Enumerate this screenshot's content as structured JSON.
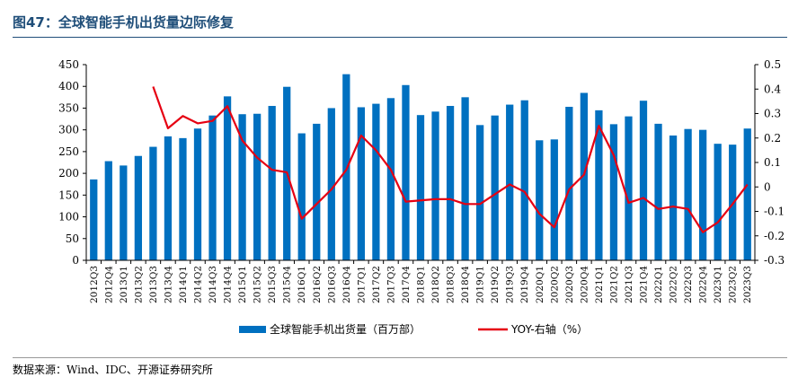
{
  "figure": {
    "title": "图47：全球智能手机出货量边际修复",
    "source": "数据来源：Wind、IDC、开源证券研究所"
  },
  "chart_data": {
    "type": "bar+line",
    "title": "",
    "categories": [
      "2012Q3",
      "2012Q4",
      "2013Q1",
      "2013Q2",
      "2013Q3",
      "2013Q4",
      "2014Q1",
      "2014Q2",
      "2014Q3",
      "2014Q4",
      "2015Q1",
      "2015Q2",
      "2015Q3",
      "2015Q4",
      "2016Q1",
      "2016Q2",
      "2016Q3",
      "2016Q4",
      "2017Q1",
      "2017Q2",
      "2017Q3",
      "2017Q4",
      "2018Q1",
      "2018Q2",
      "2018Q3",
      "2018Q4",
      "2019Q1",
      "2019Q2",
      "2019Q3",
      "2019Q4",
      "2020Q1",
      "2020Q2",
      "2020Q3",
      "2020Q4",
      "2021Q1",
      "2021Q2",
      "2021Q3",
      "2021Q4",
      "2022Q1",
      "2022Q2",
      "2022Q3",
      "2022Q4",
      "2023Q1",
      "2023Q2",
      "2023Q3"
    ],
    "series": [
      {
        "name": "全球智能手机出货量（百万部）",
        "type": "bar",
        "axis": "left",
        "color": "#0070c0",
        "values": [
          186,
          228,
          218,
          240,
          261,
          285,
          281,
          303,
          333,
          377,
          336,
          337,
          355,
          399,
          292,
          314,
          350,
          428,
          352,
          360,
          373,
          403,
          334,
          342,
          355,
          375,
          311,
          333,
          358,
          368,
          276,
          278,
          353,
          385,
          345,
          313,
          331,
          367,
          314,
          287,
          302,
          300,
          268,
          266,
          303
        ]
      },
      {
        "name": "YOY-右轴（%）",
        "type": "line",
        "axis": "right",
        "color": "#e60012",
        "values": [
          null,
          null,
          null,
          null,
          0.41,
          0.24,
          0.29,
          0.26,
          0.27,
          0.33,
          0.19,
          0.12,
          0.07,
          0.06,
          -0.13,
          -0.07,
          -0.01,
          0.07,
          0.21,
          0.15,
          0.07,
          -0.06,
          -0.055,
          -0.05,
          -0.05,
          -0.07,
          -0.07,
          -0.03,
          0.01,
          -0.02,
          -0.11,
          -0.165,
          -0.01,
          0.05,
          0.25,
          0.13,
          -0.065,
          -0.045,
          -0.09,
          -0.08,
          -0.09,
          -0.185,
          -0.145,
          -0.07,
          0.01
        ]
      }
    ],
    "y_left": {
      "min": 0,
      "max": 450,
      "step": 50
    },
    "y_right": {
      "min": -0.3,
      "max": 0.5,
      "step": 0.1
    },
    "grid": false,
    "legend_position": "bottom-center"
  }
}
